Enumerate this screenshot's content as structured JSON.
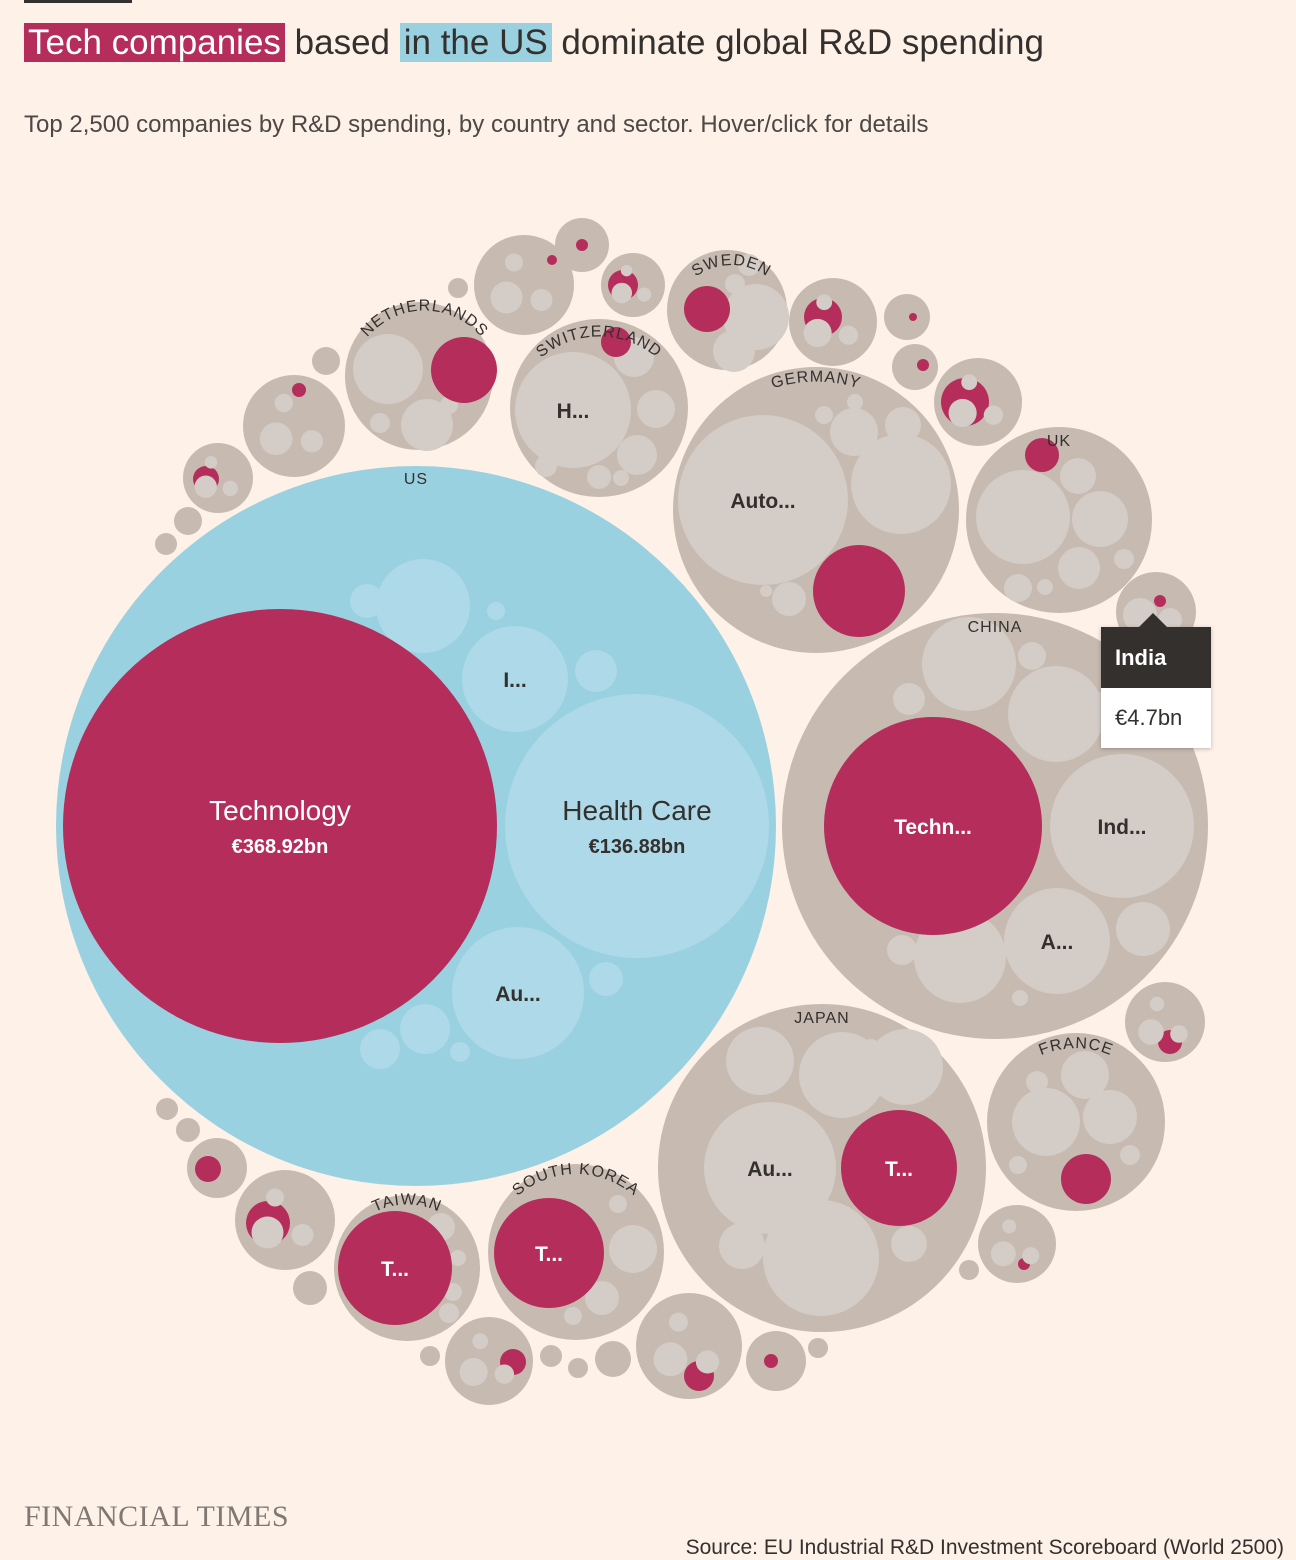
{
  "title": {
    "highlight_tech": "Tech companies",
    "part2": " based ",
    "highlight_us": "in the US",
    "part3": " dominate global R&D spending"
  },
  "subtitle": "Top 2,500 companies by R&D spending, by country and sector. Hover/click for details",
  "tooltip": {
    "country": "India",
    "value": "€4.7bn"
  },
  "footer": {
    "logo": "FINANCIAL TIMES",
    "source": "Source: EU Industrial R&D Investment Scoreboard (World 2500)"
  },
  "colors": {
    "background": "#fdf1e8",
    "technology": "#b52d5b",
    "us": "#99d1e1",
    "us_sector": "#add9e8",
    "country": "#c7bab1",
    "sector": "#d4ccc6"
  },
  "chart_data": {
    "type": "packed-bubble",
    "unit": "€bn",
    "highlighted_country": "US",
    "highlighted_sector": "Technology",
    "countries": [
      {
        "name": "US",
        "sectors": [
          {
            "name": "Technology",
            "value": 368.92,
            "label": "Technology",
            "value_label": "€368.92bn"
          },
          {
            "name": "Health Care",
            "value": 136.88,
            "label": "Health Care",
            "value_label": "€136.88bn"
          },
          {
            "name": "Industrials",
            "label": "I..."
          },
          {
            "name": "Automobiles",
            "label": "Au..."
          }
        ]
      },
      {
        "name": "China",
        "sectors": [
          {
            "name": "Technology",
            "label": "Techn..."
          },
          {
            "name": "Industrials",
            "label": "Ind..."
          },
          {
            "name": "Automobiles",
            "label": "A..."
          }
        ]
      },
      {
        "name": "Japan",
        "sectors": [
          {
            "name": "Automobiles",
            "label": "Au..."
          },
          {
            "name": "Technology",
            "label": "T..."
          }
        ]
      },
      {
        "name": "Germany",
        "sectors": [
          {
            "name": "Automobiles",
            "label": "Auto..."
          },
          {
            "name": "Technology"
          }
        ]
      },
      {
        "name": "Switzerland",
        "sectors": [
          {
            "name": "Health Care",
            "label": "H..."
          },
          {
            "name": "Technology"
          }
        ]
      },
      {
        "name": "South Korea",
        "sectors": [
          {
            "name": "Technology",
            "label": "T..."
          }
        ]
      },
      {
        "name": "Taiwan",
        "sectors": [
          {
            "name": "Technology",
            "label": "T..."
          }
        ]
      },
      {
        "name": "Netherlands",
        "sectors": [
          {
            "name": "Technology"
          }
        ]
      },
      {
        "name": "Sweden",
        "sectors": [
          {
            "name": "Technology"
          }
        ]
      },
      {
        "name": "UK",
        "sectors": [
          {
            "name": "Technology"
          }
        ]
      },
      {
        "name": "France",
        "sectors": [
          {
            "name": "Technology"
          }
        ]
      },
      {
        "name": "India",
        "value": 4.7,
        "value_label": "€4.7bn",
        "sectors": [
          {
            "name": "Technology"
          }
        ]
      }
    ]
  }
}
